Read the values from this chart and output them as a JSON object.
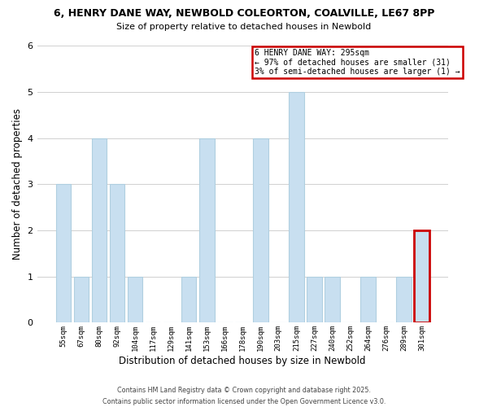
{
  "title1": "6, HENRY DANE WAY, NEWBOLD COLEORTON, COALVILLE, LE67 8PP",
  "title2": "Size of property relative to detached houses in Newbold",
  "xlabel": "Distribution of detached houses by size in Newbold",
  "ylabel": "Number of detached properties",
  "categories": [
    "55sqm",
    "67sqm",
    "80sqm",
    "92sqm",
    "104sqm",
    "117sqm",
    "129sqm",
    "141sqm",
    "153sqm",
    "166sqm",
    "178sqm",
    "190sqm",
    "203sqm",
    "215sqm",
    "227sqm",
    "240sqm",
    "252sqm",
    "264sqm",
    "276sqm",
    "289sqm",
    "301sqm"
  ],
  "values": [
    3,
    1,
    4,
    3,
    1,
    0,
    0,
    1,
    4,
    0,
    0,
    4,
    0,
    5,
    1,
    1,
    0,
    1,
    0,
    1,
    2
  ],
  "bar_color": "#c8dff0",
  "highlight_bar_index": 20,
  "highlight_bar_edge_color": "#cc0000",
  "normal_bar_edge_color": "#b0cfe0",
  "ylim": [
    0,
    6
  ],
  "yticks": [
    0,
    1,
    2,
    3,
    4,
    5,
    6
  ],
  "legend_title": "6 HENRY DANE WAY: 295sqm",
  "legend_line1": "← 97% of detached houses are smaller (31)",
  "legend_line2": "3% of semi-detached houses are larger (1) →",
  "legend_box_edge_color": "#cc0000",
  "footer1": "Contains HM Land Registry data © Crown copyright and database right 2025.",
  "footer2": "Contains public sector information licensed under the Open Government Licence v3.0.",
  "background_color": "#ffffff",
  "grid_color": "#d0d0d0"
}
